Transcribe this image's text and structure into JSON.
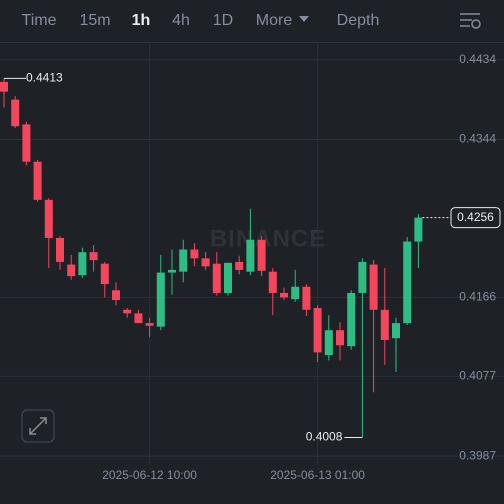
{
  "toolbar": {
    "tabs": [
      "Time",
      "15m",
      "1h",
      "4h",
      "1D",
      "More",
      "Depth"
    ],
    "active": 2
  },
  "chart_data": {
    "type": "candlestick",
    "watermark": "BINANCE",
    "categories": [
      null,
      null,
      null,
      null,
      null,
      null,
      null,
      null,
      null,
      null,
      null,
      null,
      null,
      "2025-06-12 10:00",
      null,
      null,
      null,
      null,
      null,
      null,
      null,
      null,
      null,
      null,
      null,
      null,
      null,
      null,
      "2025-06-13 01:00",
      null,
      null,
      null,
      null,
      null,
      null,
      null,
      null,
      null
    ],
    "open": [
      0.4409,
      0.4389,
      0.4361,
      0.4319,
      0.4276,
      0.4233,
      0.4203,
      0.4191,
      0.4217,
      0.4204,
      0.4174,
      0.4152,
      0.4148,
      0.4137,
      0.4133,
      0.4194,
      0.4195,
      0.422,
      0.421,
      0.4204,
      0.4171,
      0.4206,
      0.4195,
      0.4231,
      0.4195,
      0.4171,
      0.4164,
      0.4178,
      0.4154,
      0.4101,
      0.4129,
      0.4111,
      0.4171,
      0.4203,
      0.4152,
      0.412,
      0.4137,
      0.4229
    ],
    "high": [
      0.4413,
      0.4393,
      0.4364,
      0.4321,
      0.4278,
      0.4235,
      0.4214,
      0.4222,
      0.4225,
      0.4206,
      0.4183,
      0.4154,
      0.4152,
      0.4143,
      0.4214,
      0.422,
      0.4231,
      0.4227,
      0.4217,
      0.4217,
      0.4205,
      0.4213,
      0.4266,
      0.4235,
      0.4199,
      0.4177,
      0.4197,
      0.4181,
      0.4157,
      0.4146,
      0.4138,
      0.4174,
      0.421,
      0.4208,
      0.4199,
      0.4143,
      0.4234,
      0.426
    ],
    "low": [
      0.438,
      0.4357,
      0.4315,
      0.4274,
      0.4199,
      0.4197,
      0.4186,
      0.4188,
      0.4195,
      0.4166,
      0.4157,
      0.4143,
      0.4139,
      0.4121,
      0.4129,
      0.4169,
      0.4183,
      0.4201,
      0.4197,
      0.4168,
      0.4168,
      0.4192,
      0.4191,
      0.419,
      0.4146,
      0.4163,
      0.4161,
      0.4145,
      0.4093,
      0.4095,
      0.4095,
      0.4107,
      0.4008,
      0.4059,
      0.409,
      0.4082,
      0.4135,
      0.4199
    ],
    "close": [
      0.4398,
      0.4359,
      0.4319,
      0.4276,
      0.4233,
      0.4206,
      0.419,
      0.4217,
      0.4208,
      0.4181,
      0.4163,
      0.4148,
      0.4137,
      0.4134,
      0.4194,
      0.4197,
      0.422,
      0.421,
      0.4201,
      0.4171,
      0.4205,
      0.4197,
      0.4231,
      0.4196,
      0.4171,
      0.4166,
      0.4178,
      0.4152,
      0.4104,
      0.4129,
      0.4112,
      0.4171,
      0.4206,
      0.4152,
      0.4118,
      0.4137,
      0.4229,
      0.4256
    ],
    "up_color": "#2ebd85",
    "down_color": "#f6465d",
    "ylim": [
      0.3977,
      0.4454
    ],
    "yticks": [
      0.4434,
      0.4344,
      0.4166,
      0.4077,
      0.3987
    ],
    "grid": true
  }
}
